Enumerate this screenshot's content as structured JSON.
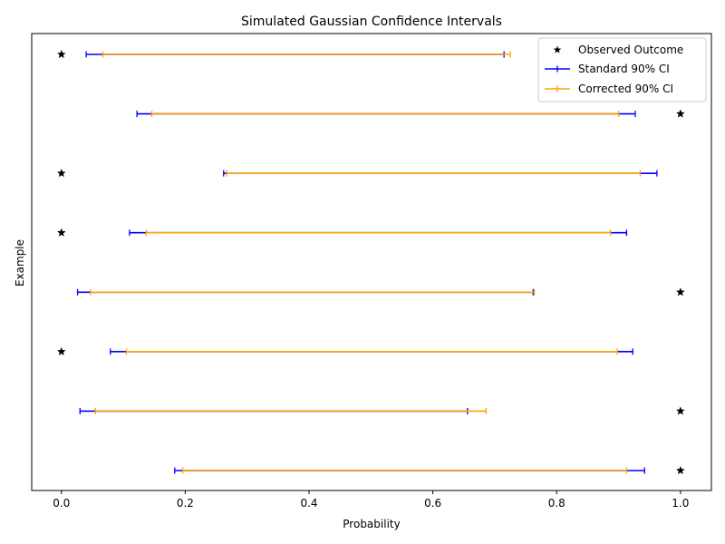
{
  "chart_data": {
    "type": "errorbar",
    "title": "Simulated Gaussian Confidence Intervals",
    "xlabel": "Probability",
    "ylabel": "Example",
    "xlim": [
      -0.048,
      1.05
    ],
    "xticks": [
      0.0,
      0.2,
      0.4,
      0.6,
      0.8,
      1.0
    ],
    "xtick_labels": [
      "0.0",
      "0.2",
      "0.4",
      "0.6",
      "0.8",
      "1.0"
    ],
    "yticks_shown": false,
    "legend_position": "top-right",
    "series": [
      {
        "name": "Observed Outcome",
        "marker": "star",
        "color": "#000000",
        "values": [
          0,
          1,
          0,
          0,
          1,
          0,
          1,
          1
        ]
      },
      {
        "name": "Standard 90% CI",
        "color": "#0000ff",
        "intervals": [
          [
            0.04,
            0.715
          ],
          [
            0.122,
            0.927
          ],
          [
            0.262,
            0.962
          ],
          [
            0.11,
            0.913
          ],
          [
            0.026,
            0.762
          ],
          [
            0.079,
            0.923
          ],
          [
            0.03,
            0.656
          ],
          [
            0.183,
            0.942
          ]
        ]
      },
      {
        "name": "Corrected 90% CI",
        "color": "#ffa500",
        "intervals": [
          [
            0.067,
            0.725
          ],
          [
            0.146,
            0.9
          ],
          [
            0.267,
            0.935
          ],
          [
            0.137,
            0.887
          ],
          [
            0.047,
            0.764
          ],
          [
            0.105,
            0.898
          ],
          [
            0.055,
            0.686
          ],
          [
            0.196,
            0.913
          ]
        ]
      }
    ]
  }
}
